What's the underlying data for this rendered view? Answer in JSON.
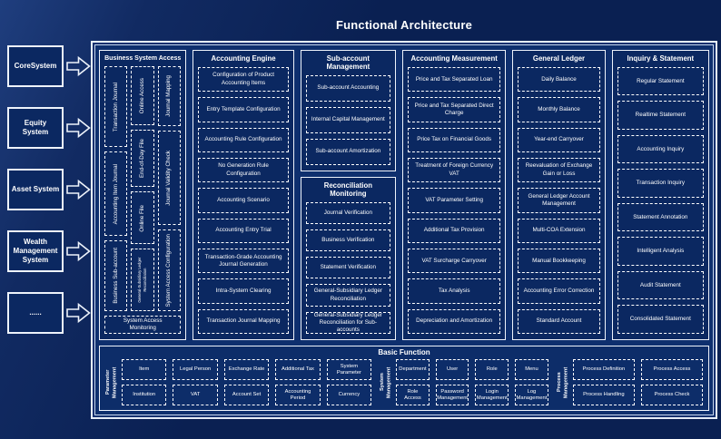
{
  "title": "Functional Architecture",
  "sources": [
    "CoreSystem",
    "Equity System",
    "Asset System",
    "Wealth Management System",
    "......"
  ],
  "main_columns": [
    {
      "panels": [
        {
          "title": "Business System Access",
          "subcolumns": [
            [
              "Transaction Journal",
              "Accounting Item Journal",
              "Business Sub-account"
            ],
            [
              "Online Access",
              "End-of-Day File",
              "Online File",
              "General-Subsidiary Ledger Reconciliation"
            ],
            [
              "Journal Mapping",
              "Journal Validity Check",
              "System Access Configuration"
            ]
          ],
          "footer": "System Access Monitoring"
        }
      ]
    },
    {
      "panels": [
        {
          "title": "Accounting Engine",
          "items": [
            "Configuration of Product Accounting Items",
            "Entry Template Configuration",
            "Accounting Rule Configuration",
            "No Generation Rule Configuration",
            "Accounting Scenario",
            "Accounting Entry Trial",
            "Transaction-Grade Accounting Journal Generation",
            "Intra-System Clearing",
            "Transaction Journal Mapping"
          ]
        }
      ]
    },
    {
      "panels": [
        {
          "title": "Sub-account Management",
          "items": [
            "Sub-account Accounting",
            "Internal Capital Management",
            "Sub-account Amortization"
          ]
        },
        {
          "title": "Reconciliation Monitoring",
          "items": [
            "Journal Verification",
            "Business Verification",
            "Statement Verification",
            "General-Subsidiary Ledger Reconciliation",
            "General-Subsidiary Ledger Reconciliation for Sub-accounts"
          ]
        }
      ]
    },
    {
      "panels": [
        {
          "title": "Accounting Measurement",
          "items": [
            "Price and Tax Separated Loan",
            "Price and Tax Separated Direct Charge",
            "Price Tax on Financial Goods",
            "Treatment of Foreign Currency VAT",
            "VAT Parameter Setting",
            "Additional Tax Provision",
            "VAT Surcharge Carryover",
            "Tax Analysis",
            "Depreciation and Amortization"
          ]
        }
      ]
    },
    {
      "panels": [
        {
          "title": "General Ledger",
          "items": [
            "Daily Balance",
            "Monthly Balance",
            "Year-end Carryover",
            "Reevaluation of Exchange Gain or Loss",
            "General Ledger Account Management",
            "Multi-COA Extension",
            "Manual Bookkeeping",
            "Accounting Error Correction",
            "Standard Account"
          ]
        }
      ]
    },
    {
      "panels": [
        {
          "title": "Inquiry & Statement",
          "items": [
            "Regular Statement",
            "Realtime Statement",
            "Accounting Inquiry",
            "Transaction Inquiry",
            "Statement Annotation",
            "Intelligent Analysis",
            "Audit Statement",
            "Consolidated Statement"
          ]
        }
      ]
    }
  ],
  "basic_function": {
    "title": "Basic Function",
    "groups": [
      {
        "label": "Parameter Management",
        "rows": [
          [
            "Item",
            "Legal Person",
            "Exchange Rate",
            "Additional Tax",
            "System Parameter"
          ],
          [
            "Institution",
            "VAT",
            "Account Set",
            "Accounting Period",
            "Currency"
          ]
        ]
      },
      {
        "label": "System Management",
        "rows": [
          [
            "Department",
            "User",
            "Role",
            "Menu"
          ],
          [
            "Role Access",
            "Password Management",
            "Login Management",
            "Log Management"
          ]
        ]
      },
      {
        "label": "Process Management",
        "rows": [
          [
            "Process Definition",
            "Process Access"
          ],
          [
            "Process Handling",
            "Process Check"
          ]
        ]
      }
    ]
  },
  "colors": {
    "background": "#0a2052",
    "panel_fill": "#0e2f6e",
    "box_fill": "#0b2861",
    "border": "#ffffff",
    "text": "#ffffff"
  }
}
